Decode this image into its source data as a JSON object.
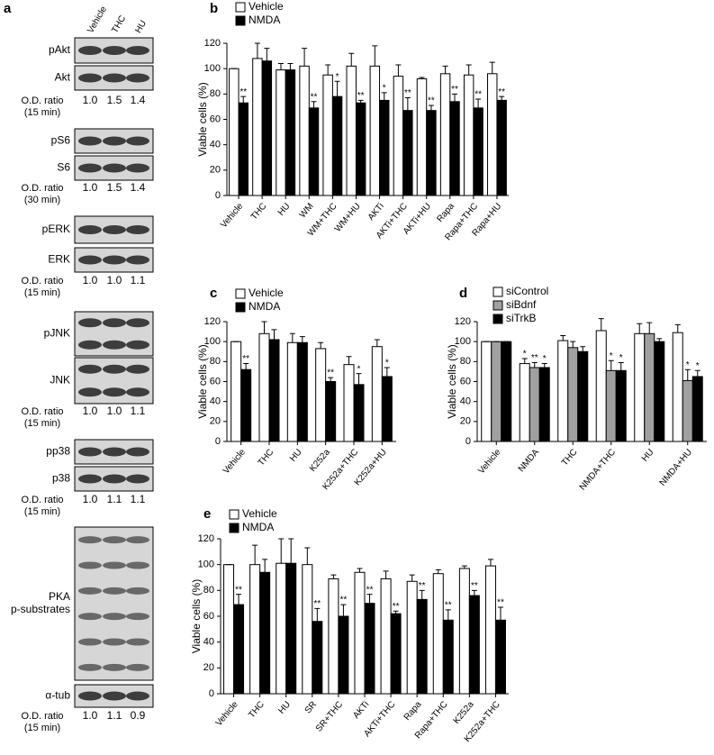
{
  "blots": {
    "panel_label": "a",
    "lanes": [
      "Vehicle",
      "THC",
      "HU"
    ],
    "groups": [
      {
        "bands": [
          [
            "pAkt"
          ],
          [
            "Akt"
          ]
        ],
        "ratio_label": "O.D. ratio",
        "ratio_time": "(15 min)",
        "ratios": [
          "1.0",
          "1.5",
          "1.4"
        ]
      },
      {
        "bands": [
          [
            "pS6"
          ],
          [
            "S6"
          ]
        ],
        "ratio_label": "O.D. ratio",
        "ratio_time": "(30 min)",
        "ratios": [
          "1.0",
          "1.5",
          "1.4"
        ]
      },
      {
        "bands": [
          [
            "pERK"
          ],
          [
            "ERK"
          ]
        ],
        "ratio_label": "O.D. ratio",
        "ratio_time": "(15 min)",
        "ratios": [
          "1.0",
          "1.0",
          "1.1"
        ]
      },
      {
        "bands": [
          [
            "pJNK"
          ],
          [
            "JNK"
          ]
        ],
        "ratio_label": "O.D. ratio",
        "ratio_time": "(15 min)",
        "ratios": [
          "1.0",
          "1.0",
          "1.1"
        ]
      },
      {
        "bands": [
          [
            "pp38"
          ],
          [
            "p38"
          ]
        ],
        "ratio_label": "O.D. ratio",
        "ratio_time": "(15 min)",
        "ratios": [
          "1.0",
          "1.1",
          "1.1"
        ]
      },
      {
        "bands": [
          [
            "PKA",
            "p-substrates"
          ],
          [
            "α-tub"
          ]
        ],
        "ratio_label": "O.D. ratio",
        "ratio_time": "(15 min)",
        "ratios": [
          "1.0",
          "1.1",
          "0.9"
        ]
      }
    ]
  },
  "chart_data": [
    {
      "type": "bar",
      "panel_label": "b",
      "y_label": "Viable cells (%)",
      "categories": [
        "Vehicle",
        "THC",
        "HU",
        "WM",
        "WM+THC",
        "WM+HU",
        "AKTi",
        "AKTi+THC",
        "AKTi+HU",
        "Rapa",
        "Rapa+THC",
        "Rapa+HU"
      ],
      "series": [
        {
          "name": "Vehicle",
          "color": "#ffffff",
          "values": [
            100,
            108,
            99,
            102,
            95,
            102,
            102,
            94,
            92,
            96,
            95,
            96
          ],
          "errors": [
            0,
            12,
            5,
            14,
            8,
            10,
            16,
            9,
            1,
            6,
            8,
            9
          ],
          "annotations": [
            null,
            null,
            null,
            null,
            null,
            null,
            null,
            null,
            null,
            null,
            null,
            null
          ]
        },
        {
          "name": "NMDA",
          "color": "#000000",
          "values": [
            73,
            106,
            99,
            69,
            78,
            73,
            75,
            67,
            67,
            74,
            69,
            75
          ],
          "errors": [
            5,
            10,
            5,
            5,
            12,
            2,
            6,
            10,
            4,
            6,
            7,
            3
          ],
          "annotations": [
            "**",
            null,
            null,
            "**",
            "*",
            "**",
            "*",
            "**",
            "**",
            "**",
            "**",
            "**"
          ]
        }
      ],
      "ylim": [
        0,
        120
      ],
      "yticks": [
        0,
        20,
        40,
        60,
        80,
        100,
        120
      ]
    },
    {
      "type": "bar",
      "panel_label": "c",
      "y_label": "Viable cells (%)",
      "categories": [
        "Vehicle",
        "THC",
        "HU",
        "K252a",
        "K252a+THC",
        "K252a+HU"
      ],
      "series": [
        {
          "name": "Vehicle",
          "color": "#ffffff",
          "values": [
            100,
            108,
            99,
            93,
            77,
            95
          ],
          "errors": [
            0,
            12,
            9,
            6,
            8,
            7
          ],
          "annotations": [
            null,
            null,
            null,
            null,
            null,
            null
          ]
        },
        {
          "name": "NMDA",
          "color": "#000000",
          "values": [
            72,
            102,
            99,
            60,
            57,
            65
          ],
          "errors": [
            6,
            10,
            6,
            4,
            11,
            9
          ],
          "annotations": [
            "**",
            null,
            null,
            "**",
            "*",
            "*"
          ]
        }
      ],
      "ylim": [
        0,
        120
      ],
      "yticks": [
        0,
        20,
        40,
        60,
        80,
        100,
        120
      ]
    },
    {
      "type": "bar",
      "panel_label": "d",
      "y_label": "Viable cells (%)",
      "categories": [
        "Vehicle",
        "NMDA",
        "THC",
        "NMDA+THC",
        "HU",
        "NMDA+HU"
      ],
      "series": [
        {
          "name": "siControl",
          "color": "#ffffff",
          "values": [
            100,
            78,
            101,
            111,
            108,
            109
          ],
          "errors": [
            0,
            5,
            5,
            12,
            10,
            8
          ],
          "annotations": [
            null,
            "*",
            null,
            null,
            null,
            null
          ]
        },
        {
          "name": "siBdnf",
          "color": "#a0a0a0",
          "values": [
            100,
            74,
            94,
            71,
            108,
            61
          ],
          "errors": [
            0,
            5,
            6,
            10,
            11,
            11
          ],
          "annotations": [
            null,
            "**",
            null,
            "*",
            null,
            "*"
          ]
        },
        {
          "name": "siTrkB",
          "color": "#000000",
          "values": [
            100,
            74,
            90,
            71,
            100,
            65
          ],
          "errors": [
            0,
            4,
            5,
            8,
            3,
            6
          ],
          "annotations": [
            null,
            "*",
            null,
            "*",
            null,
            "*"
          ]
        }
      ],
      "ylim": [
        0,
        120
      ],
      "yticks": [
        0,
        20,
        40,
        60,
        80,
        100,
        120
      ]
    },
    {
      "type": "bar",
      "panel_label": "e",
      "y_label": "Viable cells (%)",
      "categories": [
        "Vehicle",
        "THC",
        "HU",
        "SR",
        "SR+THC",
        "AKTi",
        "AKTi+THC",
        "Rapa",
        "Rapa+THC",
        "K252a",
        "K252a+THC"
      ],
      "series": [
        {
          "name": "Vehicle",
          "color": "#ffffff",
          "values": [
            100,
            100,
            101,
            100,
            89,
            94,
            89,
            87,
            93,
            97,
            99
          ],
          "errors": [
            0,
            15,
            19,
            13,
            3,
            3,
            6,
            5,
            3,
            2,
            5
          ],
          "annotations": [
            null,
            null,
            null,
            null,
            null,
            null,
            null,
            null,
            null,
            null,
            null
          ]
        },
        {
          "name": "NMDA",
          "color": "#000000",
          "values": [
            69,
            94,
            101,
            56,
            60,
            70,
            62,
            73,
            57,
            76,
            57
          ],
          "errors": [
            8,
            10,
            19,
            10,
            9,
            7,
            2,
            7,
            8,
            4,
            10
          ],
          "annotations": [
            "**",
            null,
            null,
            "**",
            "**",
            "**",
            "**",
            "**",
            "**",
            "**",
            "**"
          ]
        }
      ],
      "ylim": [
        0,
        120
      ],
      "yticks": [
        0,
        20,
        40,
        60,
        80,
        100,
        120
      ]
    }
  ]
}
